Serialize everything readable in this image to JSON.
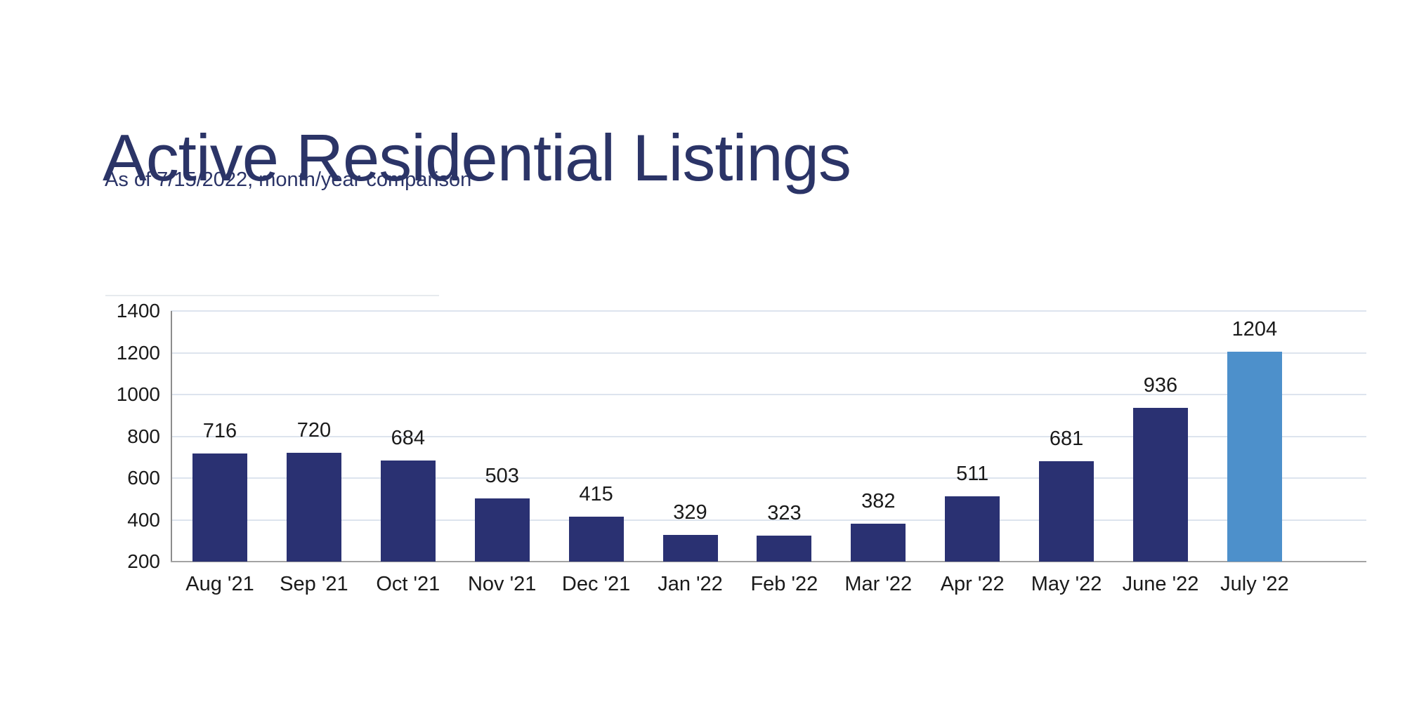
{
  "page": {
    "title": "Active Residential Listings",
    "subtitle": "As of 7/15/2022, month/year comparison"
  },
  "chart_data": {
    "type": "bar",
    "title": "Active Residential Listings",
    "subtitle": "As of 7/15/2022, month/year comparison",
    "categories": [
      "Aug '21",
      "Sep '21",
      "Oct '21",
      "Nov '21",
      "Dec '21",
      "Jan '22",
      "Feb '22",
      "Mar '22",
      "Apr '22",
      "May '22",
      "June '22",
      "July '22"
    ],
    "values": [
      716,
      720,
      684,
      503,
      415,
      329,
      323,
      382,
      511,
      681,
      936,
      1204
    ],
    "data_labels_shown": true,
    "xlabel": "",
    "ylabel": "",
    "ylim": [
      200,
      1400
    ],
    "yticks": [
      200,
      400,
      600,
      800,
      1000,
      1200,
      1400
    ],
    "grid": "horizontal",
    "legend": "none",
    "highlight_index": 11,
    "colors": {
      "title_text": "#2b3467",
      "bar": "#2a3172",
      "bar_highlight": "#4d90cb",
      "gridline": "#dde4ee",
      "axis_line_vertical": "#8c8c8c",
      "axis_line_horizontal": "#a3a3a3",
      "label_text": "#1a1a1a"
    }
  }
}
